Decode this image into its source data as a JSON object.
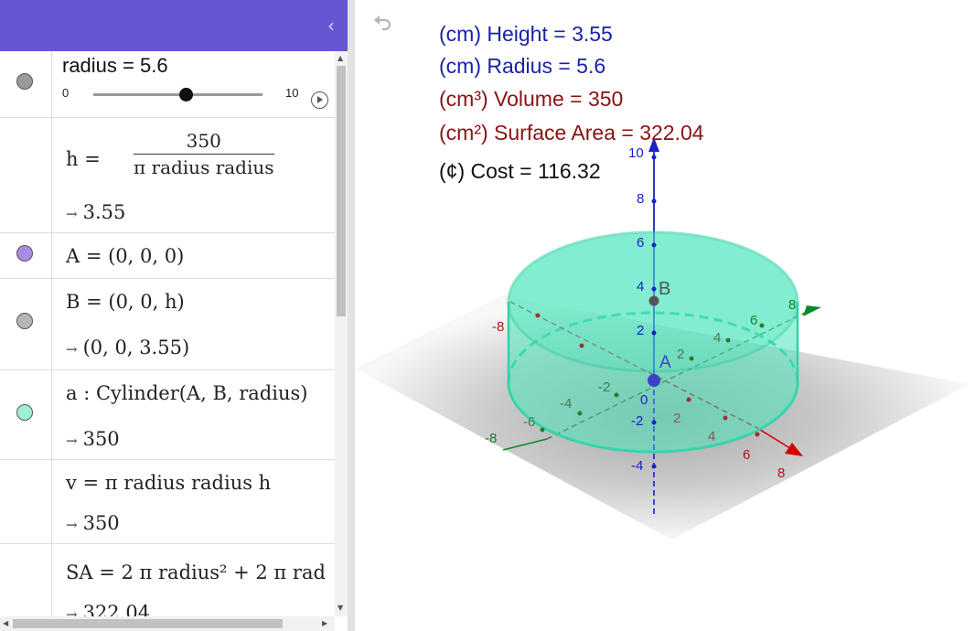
{
  "algebra": {
    "collapse_icon": "‹",
    "slider": {
      "label": "radius = 5.6",
      "min": "0",
      "max": "10",
      "value_fraction": 0.56
    },
    "rows": [
      {
        "name": "h-row",
        "color": "#ffffff",
        "num": "350",
        "den": "π radius radius",
        "lhs": "h  =",
        "output": "3.55"
      },
      {
        "name": "A-row",
        "color": "#a98be6",
        "definition": "A = (0,  0,  0)"
      },
      {
        "name": "B-row",
        "color": "#a9a9a9",
        "definition": "B  =  (0, 0, h)",
        "output": "(0,  0,  3.55)"
      },
      {
        "name": "a-row",
        "color": "#9ff0d3",
        "definition": "a : Cylinder(A, B, radius)",
        "output": "350"
      },
      {
        "name": "v-row",
        "definition": "v  =  π radius radius h",
        "output": "350"
      },
      {
        "name": "SA-row",
        "definition": "SA  =  2 π radius² + 2 π rad",
        "output": "322.04"
      }
    ],
    "output_arrow": "→"
  },
  "annotations": [
    {
      "text": "(cm) Height = 3.55",
      "color": "#1a22a8"
    },
    {
      "text": "(cm) Radius = 5.6",
      "color": "#1a22a8"
    },
    {
      "text": "(cm³) Volume = 350",
      "color": "#8a1212"
    },
    {
      "text": "(cm²) Surface Area = 322.04",
      "color": "#8a1212"
    },
    {
      "text": "(¢) Cost = 116.32",
      "color": "#111111"
    }
  ],
  "axes": {
    "z_ticks": [
      "10",
      "8",
      "6",
      "4",
      "2",
      "0",
      "-2",
      "-4"
    ],
    "x_ticks": [
      "-8",
      "2",
      "4",
      "6",
      "8"
    ],
    "y_ticks": [
      "-8",
      "-6",
      "-4",
      "-2",
      "2",
      "4",
      "6",
      "8"
    ],
    "point_A": "A",
    "point_B": "B",
    "x_color": "#d40000",
    "y_color": "#0a8a2a",
    "z_color": "#1822c8",
    "cylinder_color": "#4fe6bd"
  },
  "icons": {
    "undo": "undo-icon",
    "play": "play-icon",
    "collapse": "chevron-left-icon"
  }
}
